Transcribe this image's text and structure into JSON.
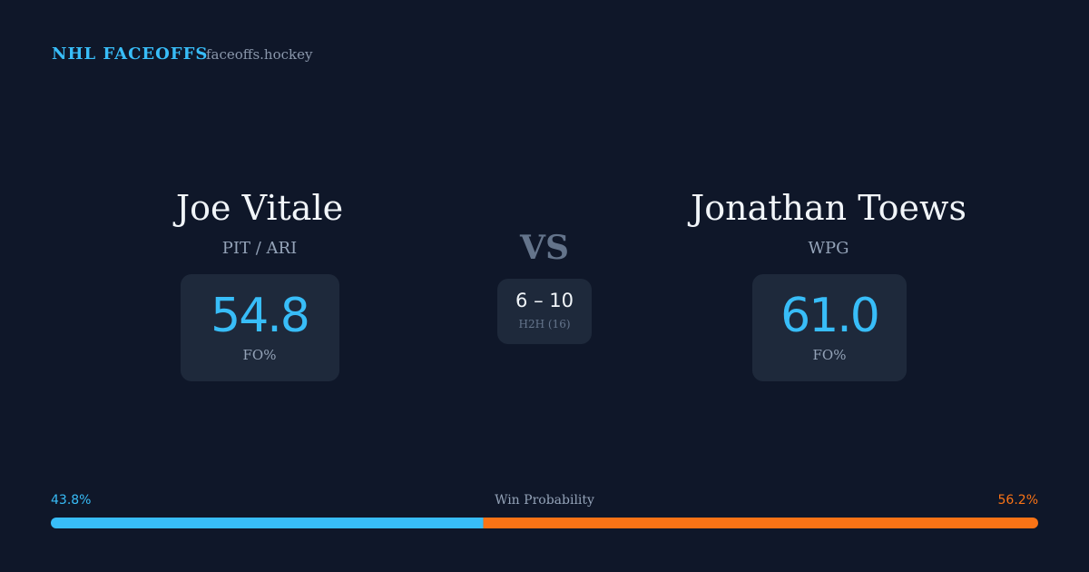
{
  "header": {
    "brand": "NHL FACEOFFS",
    "site": "faceoffs.hockey"
  },
  "players": [
    {
      "name": "Joe Vitale",
      "team": "PIT / ARI",
      "fo_pct": "54.8",
      "fo_label": "FO%"
    },
    {
      "name": "Jonathan Toews",
      "team": "WPG",
      "fo_pct": "61.0",
      "fo_label": "FO%"
    }
  ],
  "vs": "VS",
  "head_to_head": {
    "score": "6 – 10",
    "label": "H2H (16)"
  },
  "win_probability": {
    "title": "Win Probability",
    "values": [
      43.8,
      56.2
    ],
    "value_labels": [
      "43.8%",
      "56.2%"
    ],
    "colors": [
      "#38bdf8",
      "#f97316"
    ]
  }
}
